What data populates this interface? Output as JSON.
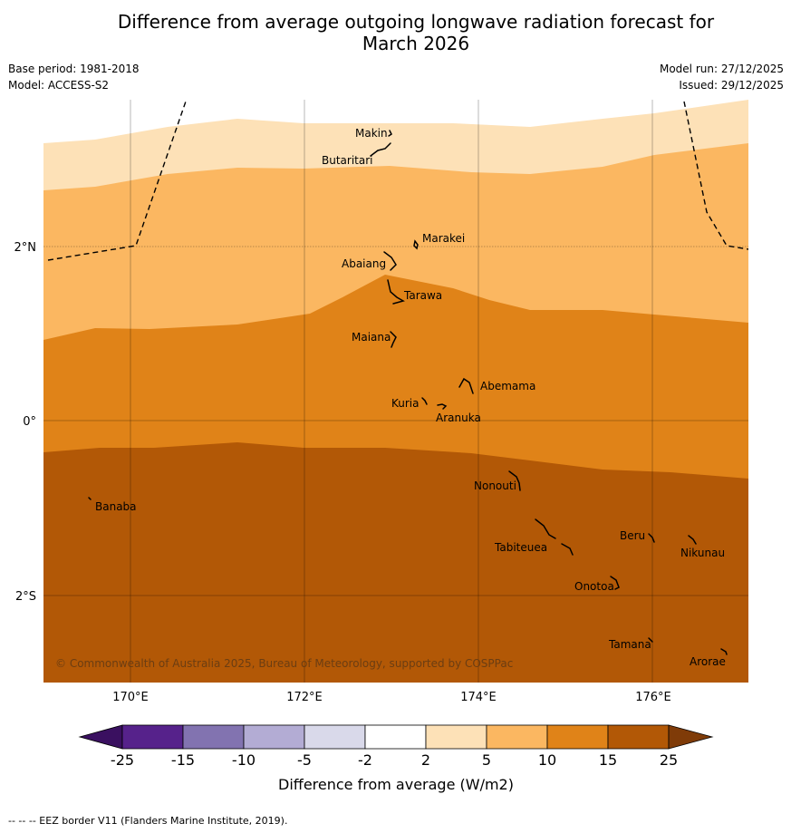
{
  "title_line1": "Difference from average outgoing longwave radiation forecast for",
  "title_line2": "March 2026",
  "base_period": "Base period: 1981-2018",
  "model": "Model: ACCESS-S2",
  "model_run": "Model run: 27/12/2025",
  "issued": "Issued: 29/12/2025",
  "copyright": "© Commonwealth of Australia 2025, Bureau of Meteorology, supported by COSPPac",
  "lat_labels": [
    "2°N",
    "0°",
    "2°S"
  ],
  "lon_labels": [
    "170°E",
    "172°E",
    "174°E",
    "176°E"
  ],
  "places": {
    "makin": "Makin",
    "butaritari": "Butaritari",
    "marakei": "Marakei",
    "abaiang": "Abaiang",
    "tarawa": "Tarawa",
    "maiana": "Maiana",
    "abemama": "Abemama",
    "kuria": "Kuria",
    "aranuka": "Aranuka",
    "nonouti": "Nonouti",
    "banaba": "Banaba",
    "beru": "Beru",
    "tabiteuea": "Tabiteuea",
    "nikunau": "Nikunau",
    "onotoa": "Onotoa",
    "tamana": "Tamana",
    "arorae": "Arorae"
  },
  "colorbar": {
    "ticks": [
      "-25",
      "-15",
      "-10",
      "-5",
      "-2",
      "2",
      "5",
      "10",
      "15",
      "25"
    ],
    "colors": [
      "#3a1060",
      "#56228b",
      "#8273b0",
      "#b3acd4",
      "#d9d9ea",
      "#ffffff",
      "#fde1b7",
      "#fbb761",
      "#e08318",
      "#b25806",
      "#7f3b08"
    ],
    "label": "Difference from average (W/m2)"
  },
  "legend_note": "--  --  -- EEZ border V11 (Flanders Marine Institute, 2019)."
}
